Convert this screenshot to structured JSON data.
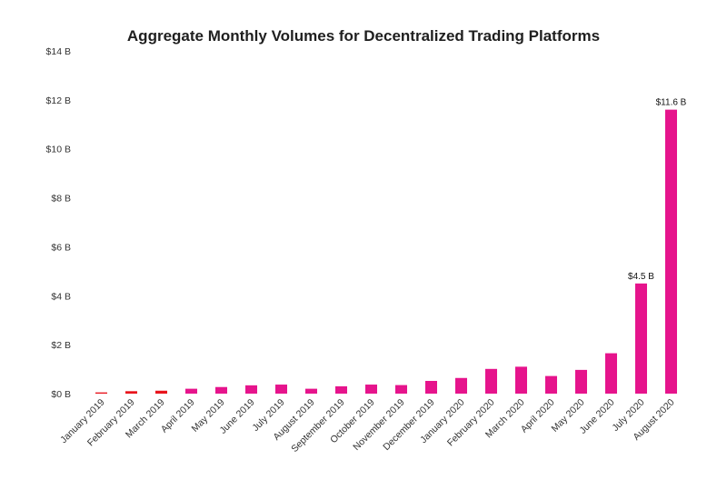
{
  "chart_data": {
    "type": "bar",
    "title": "Aggregate Monthly Volumes for Decentralized Trading Platforms",
    "xlabel": "",
    "ylabel": "",
    "ylim": [
      0,
      14
    ],
    "y_ticks": [
      0,
      2,
      4,
      6,
      8,
      10,
      12,
      14
    ],
    "y_tick_labels": [
      "$0 B",
      "$2 B",
      "$4 B",
      "$6 B",
      "$8 B",
      "$10 B",
      "$12 B",
      "$14 B"
    ],
    "grid": false,
    "legend": "none",
    "categories": [
      "January 2019",
      "February 2019",
      "March 2019",
      "April 2019",
      "May 2019",
      "June 2019",
      "July 2019",
      "August 2019",
      "September 2019",
      "October 2019",
      "November 2019",
      "December 2019",
      "January 2020",
      "February 2020",
      "March 2020",
      "April 2020",
      "May 2020",
      "June 2020",
      "July 2020",
      "August 2020"
    ],
    "values": [
      0.05,
      0.1,
      0.12,
      0.2,
      0.27,
      0.34,
      0.37,
      0.2,
      0.3,
      0.37,
      0.35,
      0.52,
      0.64,
      1.01,
      1.1,
      0.72,
      0.97,
      1.65,
      4.5,
      11.6
    ],
    "bar_colors": [
      "#e8141c",
      "#e8141c",
      "#e8141c",
      "#e6148c",
      "#e6148c",
      "#e6148c",
      "#e6148c",
      "#e6148c",
      "#e6148c",
      "#e6148c",
      "#e6148c",
      "#e6148c",
      "#e6148c",
      "#e6148c",
      "#e6148c",
      "#e6148c",
      "#e6148c",
      "#e6148c",
      "#e6148c",
      "#e6148c"
    ],
    "data_labels": [
      "",
      "",
      "",
      "",
      "",
      "",
      "",
      "",
      "",
      "",
      "",
      "",
      "",
      "",
      "",
      "",
      "",
      "",
      "$4.5 B",
      "$11.6 B"
    ]
  }
}
